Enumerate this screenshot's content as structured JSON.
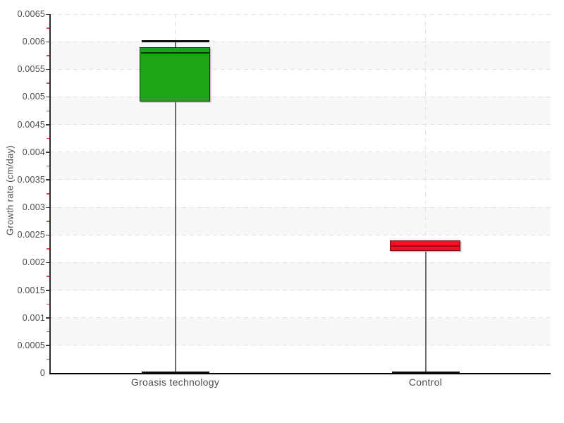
{
  "chart_data": {
    "type": "boxplot",
    "title": "",
    "xlabel": "",
    "ylabel": "Growth rate (cm/day)",
    "ylim": [
      0,
      0.0065
    ],
    "y_major_step": 0.0005,
    "y_minor_step": 0.00025,
    "grid": true,
    "background_bands": true,
    "legend": "none",
    "y_tick_labels": [
      "0",
      "0.0005",
      "0.001",
      "0.0015",
      "0.002",
      "0.0025",
      "0.003",
      "0.0035",
      "0.004",
      "0.0045",
      "0.005",
      "0.0055",
      "0.006",
      "0.0065"
    ],
    "categories": [
      "Groasis technology",
      "Control"
    ],
    "series": [
      {
        "name": "Groasis technology",
        "min": 0,
        "q1": 0.0049,
        "median": 0.0058,
        "q3": 0.0059,
        "max": 0.006,
        "fill": "#1ea417",
        "border": "#262626",
        "median_color": "#0c320c"
      },
      {
        "name": "Control",
        "min": 0,
        "q1": 0.0022,
        "median": 0.0023,
        "q3": 0.0024,
        "max": 0.0024,
        "fill": "#f80f23",
        "border": "#6b0a16",
        "median_color": "#a30517"
      }
    ]
  },
  "colors": {
    "band": "#f7f7f7",
    "grid": "#e2e2e2",
    "y_axis_line": "#2e2e2e",
    "x_axis_line": "#000000",
    "tick_major": "#3a3a3a",
    "tick_minor": "#f4493f",
    "whisker": "#6b6b6b",
    "cap": "#0d0d0d",
    "text": "#4c4c4c"
  }
}
